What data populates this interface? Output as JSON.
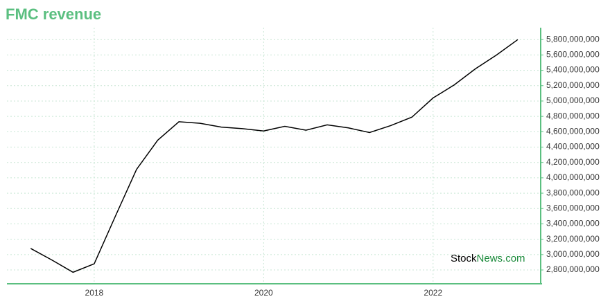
{
  "chart_data": {
    "type": "line",
    "title": "FMC revenue",
    "x": [
      2017.25,
      2017.5,
      2017.75,
      2018.0,
      2018.25,
      2018.5,
      2018.75,
      2019.0,
      2019.25,
      2019.5,
      2019.75,
      2020.0,
      2020.25,
      2020.5,
      2020.75,
      2021.0,
      2021.25,
      2021.5,
      2021.75,
      2022.0,
      2022.25,
      2022.5,
      2022.75,
      2023.0
    ],
    "series": [
      {
        "color": "#000000",
        "values": [
          3080000000,
          2930000000,
          2770000000,
          2880000000,
          3500000000,
          4110000000,
          4490000000,
          4730000000,
          4710000000,
          4660000000,
          4640000000,
          4610000000,
          4670000000,
          4620000000,
          4690000000,
          4650000000,
          4590000000,
          4680000000,
          4790000000,
          5040000000,
          5210000000,
          5420000000,
          5600000000,
          5800000000
        ]
      }
    ],
    "xlim": [
      2016.97,
      2023.27
    ],
    "xticks": [
      2018,
      2020,
      2022
    ],
    "ylim": [
      2620000000,
      5955000000
    ],
    "yticks": [
      {
        "value": 2800000000,
        "label": "2,800,000,000"
      },
      {
        "value": 3000000000,
        "label": "3,000,000,000"
      },
      {
        "value": 3200000000,
        "label": "3,200,000,000"
      },
      {
        "value": 3400000000,
        "label": "3,400,000,000"
      },
      {
        "value": 3600000000,
        "label": "3,600,000,000"
      },
      {
        "value": 3800000000,
        "label": "3,800,000,000"
      },
      {
        "value": 4000000000,
        "label": "4,000,000,000"
      },
      {
        "value": 4200000000,
        "label": "4,200,000,000"
      },
      {
        "value": 4400000000,
        "label": "4,400,000,000"
      },
      {
        "value": 4600000000,
        "label": "4,600,000,000"
      },
      {
        "value": 4800000000,
        "label": "4,800,000,000"
      },
      {
        "value": 5000000000,
        "label": "5,000,000,000"
      },
      {
        "value": 5200000000,
        "label": "5,200,000,000"
      },
      {
        "value": 5400000000,
        "label": "5,400,000,000"
      },
      {
        "value": 5600000000,
        "label": "5,600,000,000"
      },
      {
        "value": 5800000000,
        "label": "5,800,000,000"
      }
    ],
    "y_axis_side": "right",
    "grid": true,
    "watermark": [
      "Stock",
      "News.com"
    ]
  }
}
